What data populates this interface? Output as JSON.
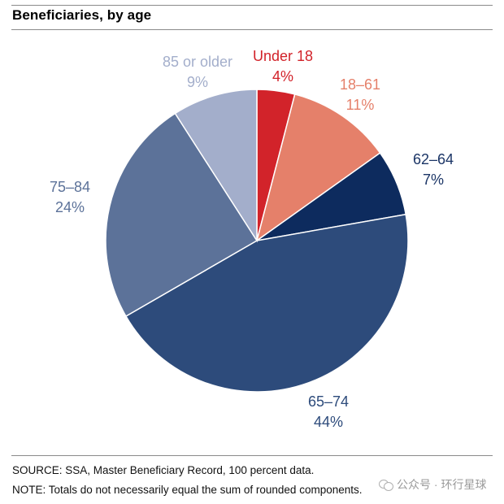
{
  "header": {
    "title": "Beneficiaries, by age"
  },
  "footer": {
    "source": "SOURCE: SSA, Master Beneficiary Record, 100 percent data.",
    "note": "NOTE: Totals do not necessarily equal the sum of rounded components."
  },
  "watermark": {
    "text": "公众号 · 环行星球",
    "icon": "wechat-icon"
  },
  "chart_data": {
    "type": "pie",
    "title": "Beneficiaries, by age",
    "start": "12 o'clock, clockwise",
    "slices": [
      {
        "label": "Under 18",
        "value": 4,
        "value_label": "4%",
        "color": "#d2232a",
        "label_color": "#d2232a"
      },
      {
        "label": "18–61",
        "value": 11,
        "value_label": "11%",
        "color": "#e5806a",
        "label_color": "#e5806a"
      },
      {
        "label": "62–64",
        "value": 7,
        "value_label": "7%",
        "color": "#0d2b5e",
        "label_color": "#1b3566"
      },
      {
        "label": "65–74",
        "value": 44,
        "value_label": "44%",
        "color": "#2d4b7b",
        "label_color": "#2d4b7b"
      },
      {
        "label": "75–84",
        "value": 24,
        "value_label": "24%",
        "color": "#5c7299",
        "label_color": "#5c7299"
      },
      {
        "label": "85 or older",
        "value": 9,
        "value_label": "9%",
        "color": "#a3aecb",
        "label_color": "#a3aecb"
      }
    ]
  }
}
